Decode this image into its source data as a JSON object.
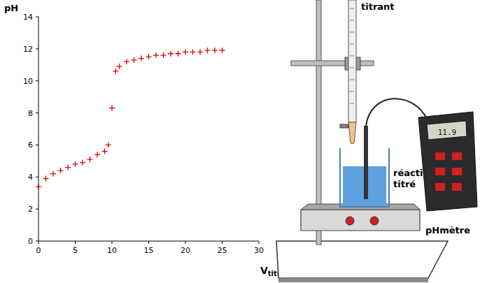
{
  "chart_data": {
    "type": "scatter",
    "x_label": "Vtitrant",
    "y_label": "pH",
    "x": [
      0,
      1,
      2,
      3,
      4,
      5,
      6,
      7,
      8,
      9,
      9.5,
      10,
      10.5,
      11,
      12,
      13,
      14,
      15,
      16,
      17,
      18,
      19,
      20,
      21,
      22,
      23,
      24,
      25
    ],
    "values": [
      3.4,
      3.9,
      4.2,
      4.4,
      4.6,
      4.8,
      4.9,
      5.1,
      5.4,
      5.6,
      6.0,
      8.3,
      10.6,
      10.9,
      11.2,
      11.3,
      11.4,
      11.5,
      11.6,
      11.6,
      11.7,
      11.7,
      11.8,
      11.8,
      11.8,
      11.9,
      11.9,
      11.9
    ],
    "color": "#e00000",
    "marker": "plus",
    "grid": false,
    "xlim": [
      0,
      30
    ],
    "xticks": [
      0,
      5,
      10,
      15,
      20,
      25,
      30
    ],
    "ylim": [
      0,
      14
    ],
    "yticks": [
      0,
      2,
      4,
      6,
      8,
      10,
      12,
      14
    ]
  },
  "diagram": {
    "burette_label": "titrant",
    "beaker_label": "réactif titré",
    "meter_label": "pHmètre",
    "meter_display": "11.9"
  }
}
